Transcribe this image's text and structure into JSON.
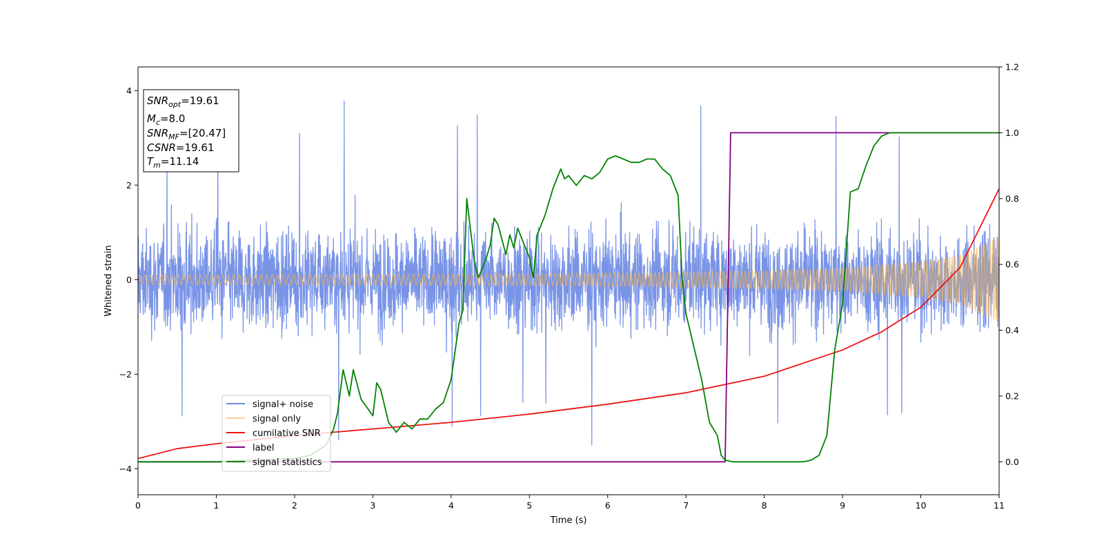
{
  "chart_data": {
    "type": "line",
    "title": "",
    "xlabel": "Time (s)",
    "ylabel": "Whitened strain",
    "y2label": "",
    "xlim": [
      0,
      11
    ],
    "ylim": [
      -4.55,
      4.5
    ],
    "y2lim": [
      -0.1,
      1.2
    ],
    "xticks": [
      "0",
      "1",
      "2",
      "3",
      "4",
      "5",
      "6",
      "7",
      "8",
      "9",
      "10",
      "11"
    ],
    "yticks": [
      "−4",
      "−2",
      "0",
      "2",
      "4"
    ],
    "y2ticks": [
      "0.0",
      "0.2",
      "0.4",
      "0.6",
      "0.8",
      "1.0",
      "1.2"
    ],
    "grid": false,
    "legend_position": "lower-left",
    "annotation": {
      "snr_opt": {
        "label": "SNR",
        "sub": "opt",
        "value": "=19.61"
      },
      "mc": {
        "label": "M",
        "sub": "c",
        "value": "=8.0"
      },
      "snr_mf": {
        "label": "SNR",
        "sub": "MF",
        "value": "=[20.47]"
      },
      "csnr": {
        "label": "CSNR",
        "sub": "",
        "value": "=19.61"
      },
      "tm": {
        "label": "T",
        "sub": "m",
        "value": "=11.14"
      }
    },
    "series": [
      {
        "name": "signal+ noise",
        "axis": "left",
        "color": "#6a88e4",
        "description_of_values": "noise band of width ~±2 around 0, spikes up to ~4.0"
      },
      {
        "name": "signal only",
        "axis": "left",
        "color": "#f5b34e",
        "chirp_amplitude": {
          "x": [
            0,
            2,
            4,
            6,
            7,
            8,
            9,
            10,
            10.5,
            11
          ],
          "y": [
            0.1,
            0.11,
            0.12,
            0.14,
            0.16,
            0.19,
            0.24,
            0.38,
            0.52,
            0.9
          ]
        }
      },
      {
        "name": "cumilative SNR",
        "axis": "right",
        "color": "#ee1111",
        "x": [
          0,
          0.5,
          1,
          2,
          3,
          4,
          5,
          6,
          7,
          8,
          9,
          9.5,
          10,
          10.5,
          11
        ],
        "y": [
          0.01,
          0.04,
          0.055,
          0.08,
          0.1,
          0.12,
          0.145,
          0.175,
          0.21,
          0.26,
          0.34,
          0.395,
          0.47,
          0.59,
          0.83
        ]
      },
      {
        "name": "label",
        "axis": "right",
        "color": "#800080",
        "x": [
          0,
          7.5,
          7.57,
          11
        ],
        "y": [
          0.0,
          0.0,
          1.0,
          1.0
        ]
      },
      {
        "name": "signal statistics",
        "axis": "right",
        "color": "#008000",
        "x": [
          0,
          1,
          2,
          2.2,
          2.4,
          2.5,
          2.55,
          2.62,
          2.7,
          2.75,
          2.85,
          3.0,
          3.05,
          3.1,
          3.2,
          3.3,
          3.4,
          3.5,
          3.6,
          3.7,
          3.8,
          3.9,
          4.0,
          4.1,
          4.15,
          4.2,
          4.25,
          4.3,
          4.35,
          4.4,
          4.45,
          4.5,
          4.55,
          4.6,
          4.7,
          4.75,
          4.8,
          4.85,
          4.9,
          5.0,
          5.05,
          5.1,
          5.2,
          5.3,
          5.4,
          5.45,
          5.5,
          5.6,
          5.7,
          5.8,
          5.9,
          6.0,
          6.1,
          6.2,
          6.3,
          6.4,
          6.5,
          6.6,
          6.7,
          6.8,
          6.9,
          6.95,
          7.0,
          7.1,
          7.2,
          7.3,
          7.4,
          7.45,
          7.5,
          7.6,
          7.7,
          8.0,
          8.5,
          8.6,
          8.7,
          8.8,
          8.9,
          9.0,
          9.1,
          9.2,
          9.3,
          9.4,
          9.5,
          9.6,
          9.7,
          10.0,
          11.0
        ],
        "y": [
          0.0,
          0.0,
          0.01,
          0.02,
          0.05,
          0.1,
          0.15,
          0.28,
          0.2,
          0.28,
          0.19,
          0.14,
          0.24,
          0.22,
          0.12,
          0.09,
          0.12,
          0.1,
          0.13,
          0.13,
          0.16,
          0.18,
          0.25,
          0.42,
          0.46,
          0.8,
          0.7,
          0.6,
          0.56,
          0.59,
          0.62,
          0.66,
          0.74,
          0.72,
          0.63,
          0.69,
          0.65,
          0.71,
          0.68,
          0.62,
          0.56,
          0.69,
          0.75,
          0.83,
          0.89,
          0.86,
          0.87,
          0.84,
          0.87,
          0.86,
          0.88,
          0.92,
          0.93,
          0.92,
          0.91,
          0.91,
          0.92,
          0.92,
          0.89,
          0.87,
          0.81,
          0.56,
          0.45,
          0.35,
          0.25,
          0.12,
          0.08,
          0.02,
          0.005,
          0.0,
          0.0,
          0.0,
          0.0,
          0.005,
          0.02,
          0.08,
          0.34,
          0.48,
          0.82,
          0.83,
          0.9,
          0.96,
          0.99,
          1.0,
          1.0,
          1.0,
          1.0
        ]
      }
    ]
  }
}
